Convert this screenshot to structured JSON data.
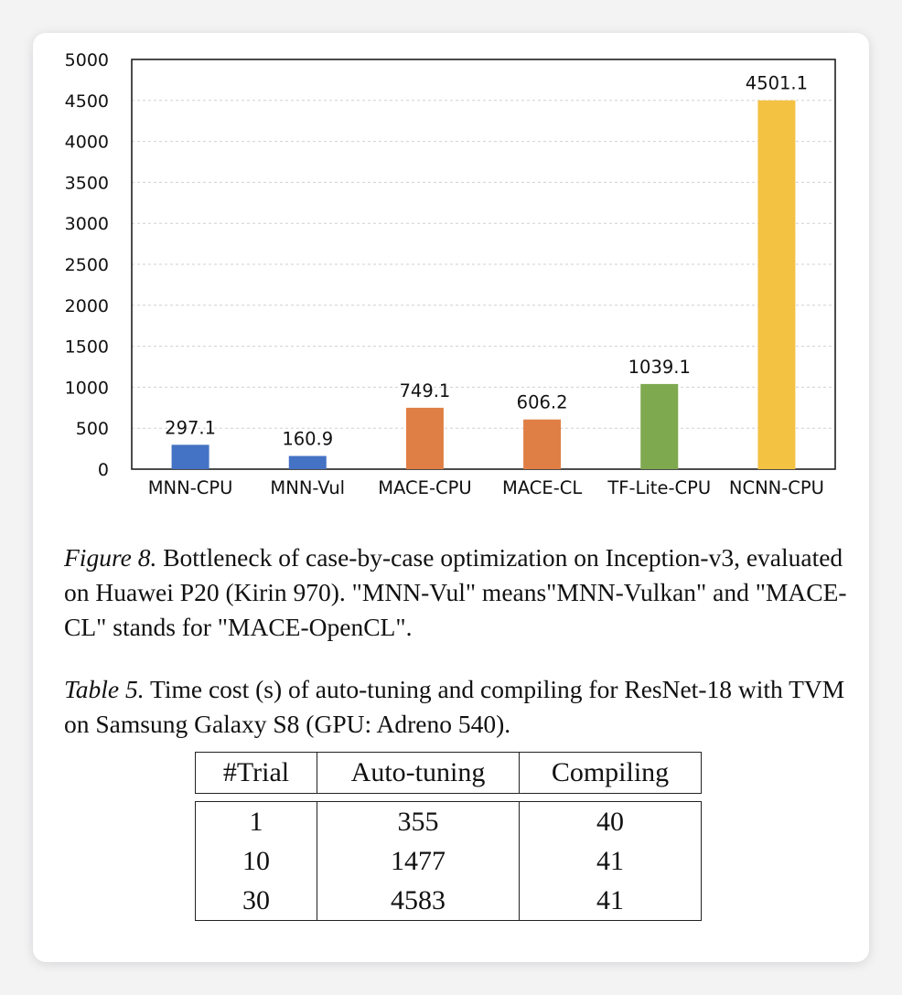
{
  "figure": {
    "caption_lead": "Figure 8.",
    "caption_text": " Bottleneck of case-by-case optimization on Inception-v3, evaluated on Huawei P20 (Kirin 970). \"MNN-Vul\" means\"MNN-Vulkan\" and \"MACE-CL\" stands for \"MACE-OpenCL\"."
  },
  "chart_data": {
    "type": "bar",
    "categories": [
      "MNN-CPU",
      "MNN-Vul",
      "MACE-CPU",
      "MACE-CL",
      "TF-Lite-CPU",
      "NCNN-CPU"
    ],
    "values": [
      297.1,
      160.9,
      749.1,
      606.2,
      1039.1,
      4501.1
    ],
    "value_labels": [
      "297.1",
      "160.9",
      "749.1",
      "606.2",
      "1039.1",
      "4501.1"
    ],
    "bar_colors": [
      "#4472c4",
      "#4472c4",
      "#e07f45",
      "#e07f45",
      "#7ea94f",
      "#f4c243"
    ],
    "ylim": [
      0,
      5000
    ],
    "yticks": [
      "0",
      "500",
      "1000",
      "1500",
      "2000",
      "2500",
      "3000",
      "3500",
      "4000",
      "4500",
      "5000"
    ],
    "grid": true,
    "title": "",
    "xlabel": "",
    "ylabel": ""
  },
  "table": {
    "caption_lead": "Table 5.",
    "caption_text": " Time cost (s) of auto-tuning and compiling for ResNet-18 with TVM on Samsung Galaxy S8 (GPU: Adreno 540).",
    "headers": [
      "#Trial",
      "Auto-tuning",
      "Compiling"
    ],
    "rows": [
      [
        "1",
        "355",
        "40"
      ],
      [
        "10",
        "1477",
        "41"
      ],
      [
        "30",
        "4583",
        "41"
      ]
    ]
  }
}
